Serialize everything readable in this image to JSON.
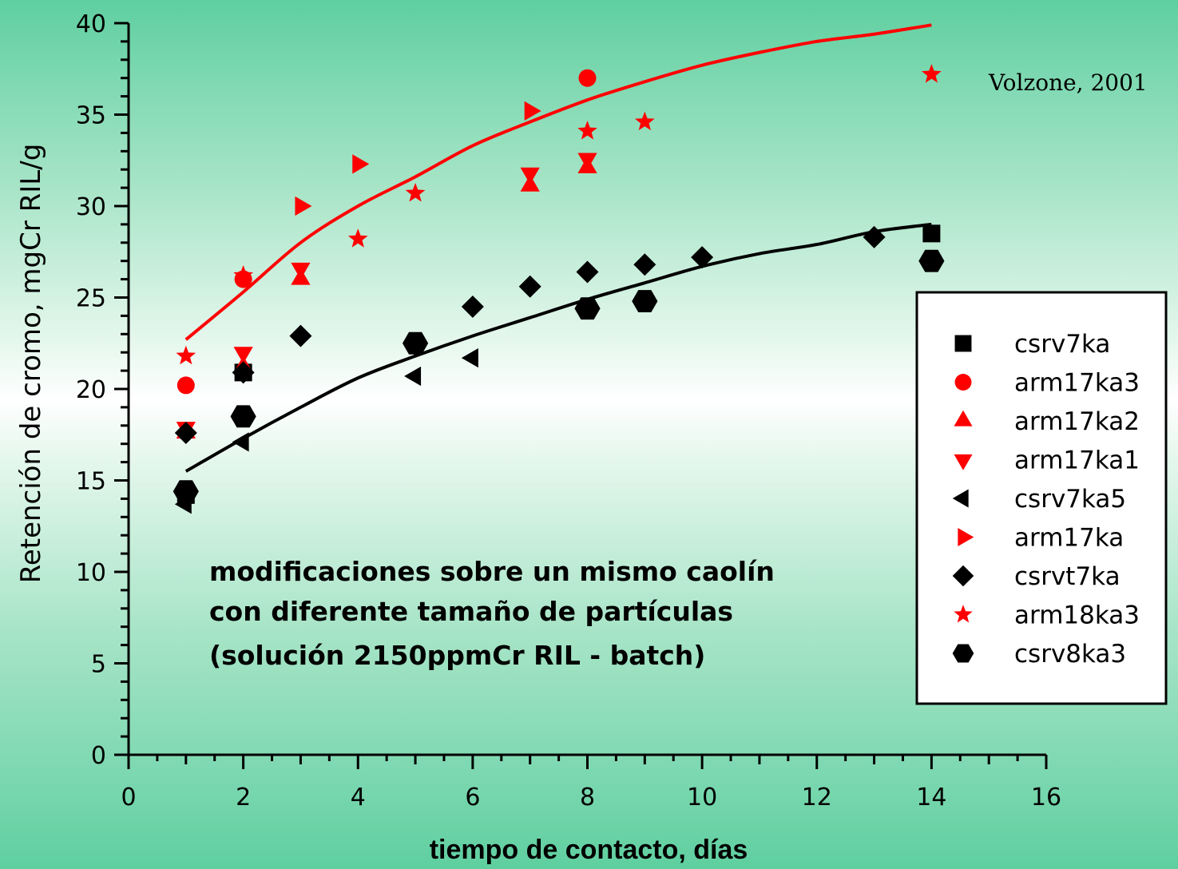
{
  "chart_data": {
    "type": "scatter",
    "title": "",
    "xlabel": "tiempo de contacto, días",
    "ylabel": "Retención de cromo, mgCr RIL/g",
    "xlim": [
      0,
      16
    ],
    "ylim": [
      0,
      40
    ],
    "x_ticks": [
      "0",
      "2",
      "4",
      "6",
      "8",
      "10",
      "12",
      "14",
      "16"
    ],
    "y_ticks": [
      "0",
      "5",
      "10",
      "15",
      "20",
      "25",
      "30",
      "35",
      "40"
    ],
    "grid": false,
    "legend_position": "right",
    "annotation_lines": [
      "modificaciones sobre un mismo caolín",
      "con diferente tamaño de partículas",
      "(solución 2150ppmCr RIL - batch)"
    ],
    "credit": "Volzone, 2001",
    "series": [
      {
        "name": "csrv7ka",
        "color": "#000000",
        "marker": "square",
        "points": [
          [
            1,
            14.2
          ],
          [
            2,
            20.9
          ],
          [
            14,
            28.5
          ]
        ]
      },
      {
        "name": "arm17ka3",
        "color": "#ff0000",
        "marker": "circle",
        "points": [
          [
            1,
            20.2
          ],
          [
            2,
            26.0
          ],
          [
            8,
            37.0
          ]
        ]
      },
      {
        "name": "arm17ka2",
        "color": "#ff0000",
        "marker": "triangle-up",
        "points": [
          [
            1,
            17.6
          ],
          [
            2,
            21.2
          ],
          [
            3,
            26.0
          ],
          [
            7,
            31.1
          ],
          [
            8,
            32.1
          ]
        ]
      },
      {
        "name": "arm17ka1",
        "color": "#ff0000",
        "marker": "triangle-down",
        "points": [
          [
            1,
            17.9
          ],
          [
            2,
            22.0
          ],
          [
            3,
            26.6
          ],
          [
            7,
            31.8
          ],
          [
            8,
            32.6
          ]
        ]
      },
      {
        "name": "csrv7ka5",
        "color": "#000000",
        "marker": "triangle-left",
        "points": [
          [
            1,
            13.7
          ],
          [
            2,
            17.1
          ],
          [
            5,
            20.7
          ],
          [
            6,
            21.7
          ]
        ]
      },
      {
        "name": "arm17ka",
        "color": "#ff0000",
        "marker": "triangle-right",
        "points": [
          [
            3,
            30.0
          ],
          [
            4,
            32.3
          ],
          [
            7,
            35.2
          ]
        ]
      },
      {
        "name": "csrvt7ka",
        "color": "#000000",
        "marker": "diamond",
        "points": [
          [
            1,
            17.6
          ],
          [
            2,
            20.9
          ],
          [
            3,
            22.9
          ],
          [
            5,
            22.4
          ],
          [
            6,
            24.5
          ],
          [
            7,
            25.6
          ],
          [
            8,
            26.4
          ],
          [
            9,
            26.8
          ],
          [
            10,
            27.2
          ],
          [
            13,
            28.3
          ]
        ]
      },
      {
        "name": "arm18ka3",
        "color": "#ff0000",
        "marker": "star",
        "points": [
          [
            1,
            21.8
          ],
          [
            2,
            26.2
          ],
          [
            4,
            28.2
          ],
          [
            5,
            30.7
          ],
          [
            8,
            34.1
          ],
          [
            9,
            34.6
          ],
          [
            14,
            37.2
          ]
        ]
      },
      {
        "name": "csrv8ka3",
        "color": "#000000",
        "marker": "hexagon",
        "points": [
          [
            1,
            14.4
          ],
          [
            2,
            18.5
          ],
          [
            5,
            22.5
          ],
          [
            8,
            24.4
          ],
          [
            9,
            24.8
          ],
          [
            14,
            27.0
          ]
        ]
      }
    ],
    "fit_curves": [
      {
        "color": "#ff0000",
        "points": [
          [
            1,
            22.7
          ],
          [
            2,
            25.3
          ],
          [
            3,
            28.0
          ],
          [
            4,
            30.0
          ],
          [
            5,
            31.6
          ],
          [
            6,
            33.3
          ],
          [
            7,
            34.6
          ],
          [
            8,
            35.8
          ],
          [
            9,
            36.8
          ],
          [
            10,
            37.7
          ],
          [
            11,
            38.4
          ],
          [
            12,
            39.0
          ],
          [
            13,
            39.4
          ],
          [
            14,
            39.9
          ]
        ]
      },
      {
        "color": "#000000",
        "points": [
          [
            1,
            15.5
          ],
          [
            2,
            17.3
          ],
          [
            3,
            19.0
          ],
          [
            4,
            20.6
          ],
          [
            5,
            21.8
          ],
          [
            6,
            22.9
          ],
          [
            7,
            23.9
          ],
          [
            8,
            24.9
          ],
          [
            9,
            25.8
          ],
          [
            10,
            26.7
          ],
          [
            11,
            27.4
          ],
          [
            12,
            27.9
          ],
          [
            13,
            28.6
          ],
          [
            14,
            29.0
          ]
        ]
      }
    ]
  }
}
